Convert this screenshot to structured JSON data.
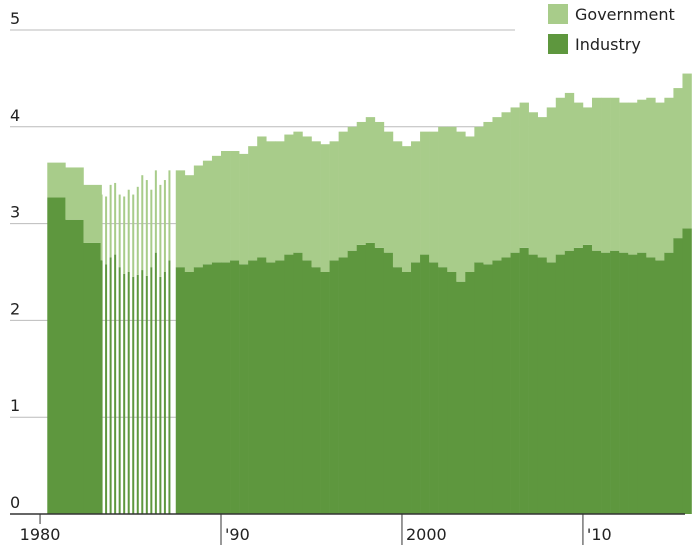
{
  "chart_data": {
    "type": "stacked_bar",
    "x": [
      1980.4,
      1981.4,
      1982.4,
      1983.4,
      1983.65,
      1983.9,
      1984.15,
      1984.4,
      1984.65,
      1984.9,
      1985.15,
      1985.4,
      1985.65,
      1985.9,
      1986.15,
      1986.4,
      1986.65,
      1986.9,
      1987.15,
      1987.5,
      1988,
      1988.5,
      1989,
      1989.5,
      1990,
      1990.5,
      1991,
      1991.5,
      1992,
      1992.5,
      1993,
      1993.5,
      1994,
      1994.5,
      1995,
      1995.5,
      1996,
      1996.5,
      1997,
      1997.5,
      1998,
      1998.5,
      1999,
      1999.5,
      2000,
      2000.5,
      2001,
      2001.5,
      2002,
      2002.5,
      2003,
      2003.5,
      2004,
      2004.5,
      2005,
      2005.5,
      2006,
      2006.5,
      2007,
      2007.5,
      2008,
      2008.5,
      2009,
      2009.5,
      2010,
      2010.5,
      2011,
      2011.5,
      2012,
      2012.5,
      2013,
      2013.5,
      2014,
      2014.5,
      2015,
      2015.5
    ],
    "series": [
      {
        "name": "Industry",
        "color": "#5e973e",
        "values": [
          3.27,
          3.04,
          2.8,
          2.62,
          2.58,
          2.65,
          2.68,
          2.55,
          2.48,
          2.5,
          2.45,
          2.47,
          2.52,
          2.46,
          2.55,
          2.7,
          2.45,
          2.5,
          2.62,
          2.55,
          2.5,
          2.55,
          2.58,
          2.6,
          2.6,
          2.62,
          2.58,
          2.62,
          2.65,
          2.6,
          2.62,
          2.68,
          2.7,
          2.62,
          2.55,
          2.5,
          2.62,
          2.65,
          2.72,
          2.78,
          2.8,
          2.75,
          2.7,
          2.55,
          2.5,
          2.6,
          2.68,
          2.6,
          2.55,
          2.5,
          2.4,
          2.5,
          2.6,
          2.58,
          2.62,
          2.65,
          2.7,
          2.75,
          2.68,
          2.65,
          2.6,
          2.68,
          2.72,
          2.75,
          2.78,
          2.72,
          2.7,
          2.72,
          2.7,
          2.68,
          2.7,
          2.65,
          2.62,
          2.7,
          2.85,
          2.95
        ]
      },
      {
        "name": "Government",
        "color": "#a8cc8a",
        "values": [
          0.36,
          0.54,
          0.6,
          0.68,
          0.7,
          0.75,
          0.74,
          0.75,
          0.8,
          0.85,
          0.85,
          0.91,
          0.98,
          0.99,
          0.8,
          0.85,
          0.95,
          0.95,
          0.93,
          1.0,
          1.0,
          1.05,
          1.07,
          1.1,
          1.15,
          1.13,
          1.14,
          1.18,
          1.25,
          1.25,
          1.23,
          1.24,
          1.25,
          1.28,
          1.3,
          1.32,
          1.23,
          1.3,
          1.28,
          1.27,
          1.3,
          1.3,
          1.25,
          1.3,
          1.3,
          1.25,
          1.27,
          1.35,
          1.45,
          1.5,
          1.55,
          1.4,
          1.4,
          1.47,
          1.48,
          1.5,
          1.5,
          1.5,
          1.47,
          1.45,
          1.6,
          1.62,
          1.63,
          1.5,
          1.42,
          1.58,
          1.6,
          1.58,
          1.55,
          1.57,
          1.58,
          1.65,
          1.63,
          1.6,
          1.55,
          1.6
        ]
      }
    ],
    "xlim": [
      1978.34,
      2015.64
    ],
    "xticks": [
      1980,
      {
        "value": 1990,
        "label": "'90"
      },
      2000,
      {
        "value": 2010,
        "label": "'10"
      }
    ],
    "ylim": [
      0,
      5
    ],
    "yticks": [
      0,
      1,
      2,
      3,
      4,
      5
    ],
    "grid": true,
    "legend": "top-right"
  }
}
